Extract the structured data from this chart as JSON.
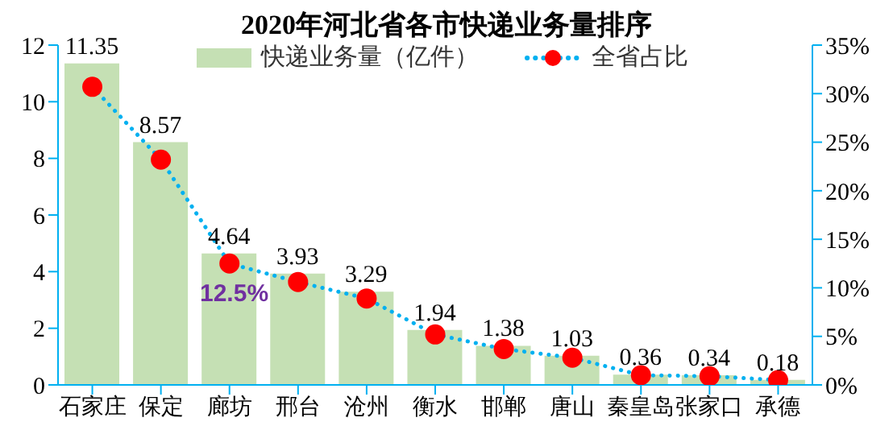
{
  "chart_data": {
    "type": "bar",
    "title": "2020年河北省各市快递业务量排序",
    "categories": [
      "石家庄",
      "保定",
      "廊坊",
      "邢台",
      "沧州",
      "衡水",
      "邯郸",
      "唐山",
      "秦皇岛",
      "张家口",
      "承德"
    ],
    "series": [
      {
        "name": "快递业务量（亿件）",
        "color": "#c5e0b4",
        "values": [
          11.35,
          8.57,
          4.64,
          3.93,
          3.29,
          1.94,
          1.38,
          1.03,
          0.36,
          0.34,
          0.18
        ],
        "data_labels": true
      },
      {
        "name": "全省占比",
        "type": "line",
        "axis": "y2",
        "color": "#00b0f0",
        "marker": "circle",
        "line_style": "dotted",
        "values": [
          30.7,
          23.2,
          12.5,
          10.6,
          8.9,
          5.2,
          3.7,
          2.8,
          1.0,
          0.9,
          0.5
        ]
      }
    ],
    "ylim": [
      0,
      12
    ],
    "yticks": [
      0,
      2,
      4,
      6,
      8,
      10,
      12
    ],
    "y2lim": [
      0,
      35
    ],
    "y2ticks": [
      {
        "value": 0,
        "label": "0%"
      },
      {
        "value": 5,
        "label": "5%"
      },
      {
        "value": 10,
        "label": "10%"
      },
      {
        "value": 15,
        "label": "15%"
      },
      {
        "value": 20,
        "label": "20%"
      },
      {
        "value": 25,
        "label": "25%"
      },
      {
        "value": 30,
        "label": "30%"
      },
      {
        "value": 35,
        "label": "35%"
      }
    ],
    "annotations": [
      "12.5%"
    ],
    "legend": "top",
    "grid": false
  }
}
